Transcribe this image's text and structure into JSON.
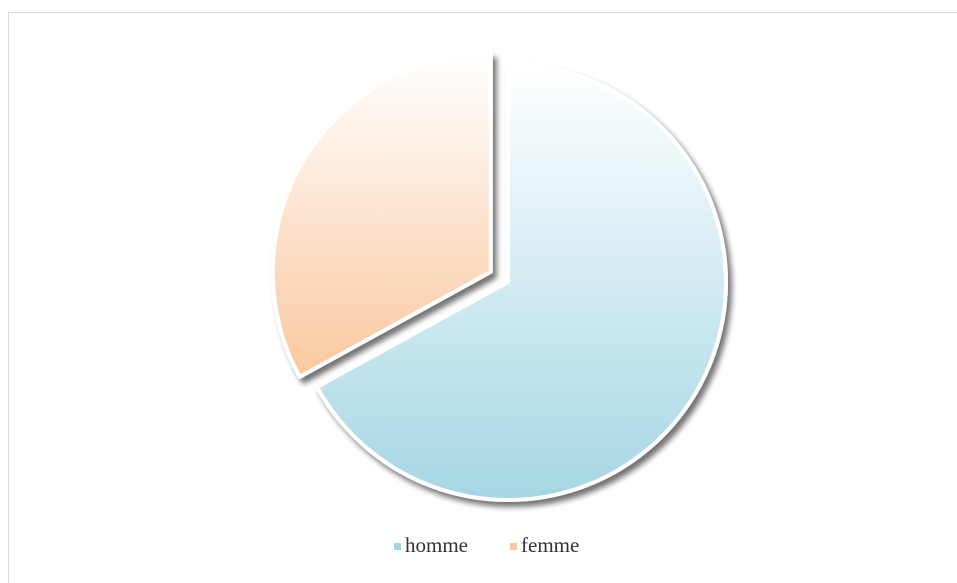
{
  "chart_data": {
    "type": "pie",
    "categories": [
      "homme",
      "femme"
    ],
    "values": [
      67,
      33
    ],
    "colors": [
      "#a6d6e4",
      "#f9c8a0"
    ],
    "exploded": [
      false,
      true
    ],
    "legend": "bottom"
  }
}
